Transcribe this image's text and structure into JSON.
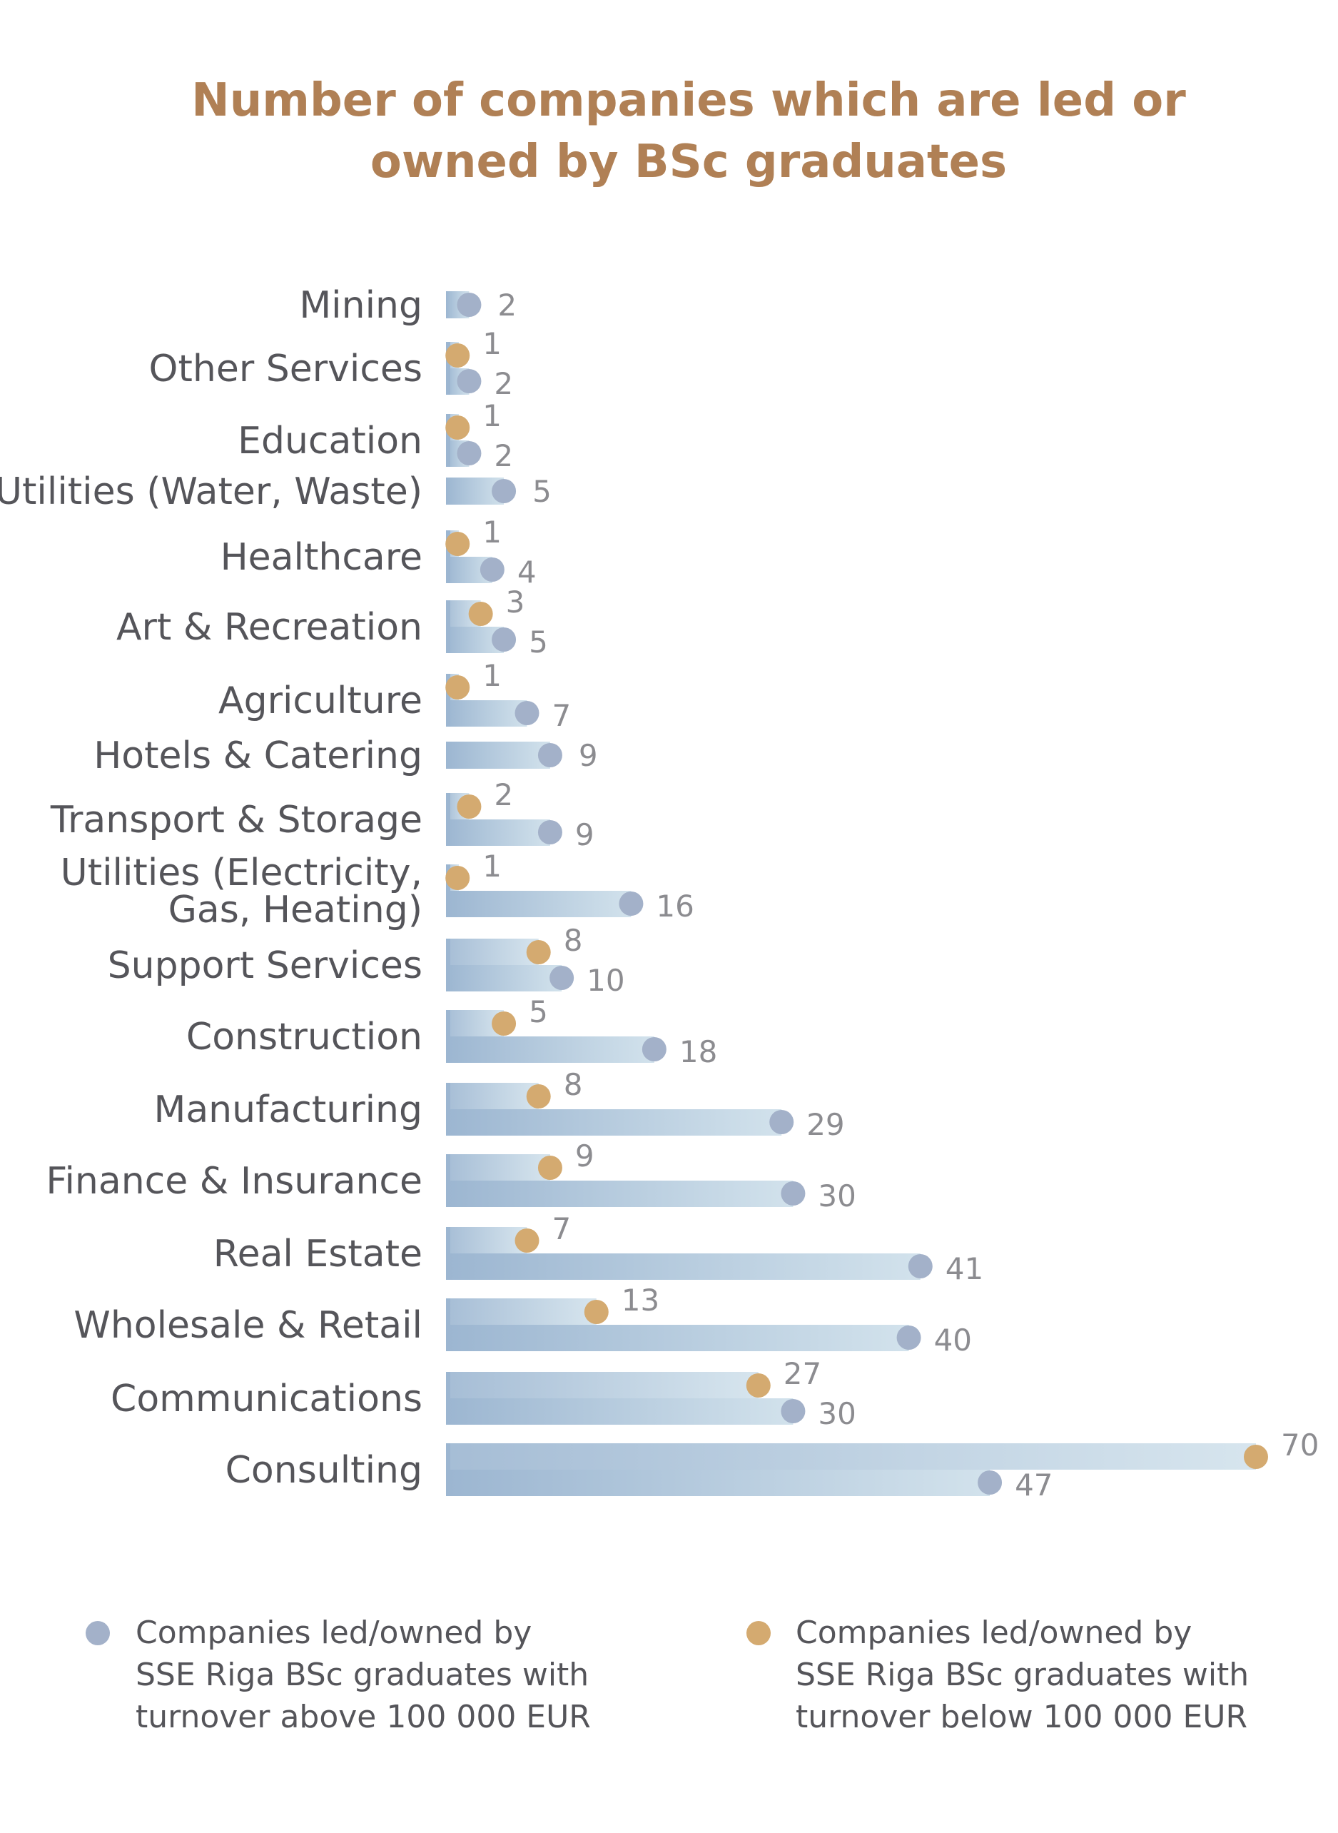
{
  "chart_data": {
    "type": "bar",
    "title": "Number of companies which are led or owned by BSc graduates",
    "title_lines": [
      "Number of companies which are led or",
      "owned by BSc graduates"
    ],
    "categories": [
      [
        "Mining"
      ],
      [
        "Other Services"
      ],
      [
        "Education"
      ],
      [
        "Utilities (Water, Waste)"
      ],
      [
        "Healthcare"
      ],
      [
        "Art & Recreation"
      ],
      [
        "Agriculture"
      ],
      [
        "Hotels & Catering"
      ],
      [
        "Transport & Storage"
      ],
      [
        "Utilities (Electricity,",
        "Gas, Heating)"
      ],
      [
        "Support Services"
      ],
      [
        "Construction"
      ],
      [
        "Manufacturing"
      ],
      [
        "Finance & Insurance"
      ],
      [
        "Real Estate"
      ],
      [
        "Wholesale & Retail"
      ],
      [
        "Communications"
      ],
      [
        "Consulting"
      ]
    ],
    "series": [
      {
        "name": "Companies led/owned by SSE Riga BSc graduates with turnover above 100 000 EUR",
        "legend_lines": [
          "Companies led/owned by",
          "SSE Riga BSc graduates with",
          "turnover above 100 000 EUR"
        ],
        "color": "#a3b1c9",
        "values": [
          2,
          2,
          2,
          5,
          4,
          5,
          7,
          9,
          9,
          16,
          10,
          18,
          29,
          30,
          41,
          40,
          30,
          47
        ],
        "labels": [
          "2",
          "2",
          "2",
          "5",
          "4",
          "5",
          "7",
          "9",
          "9",
          "16",
          "10",
          "18",
          "29",
          "30",
          "41",
          "40",
          "30",
          "47"
        ]
      },
      {
        "name": "Companies led/owned by SSE Riga BSc graduates with turnover below 100 000 EUR",
        "legend_lines": [
          "Companies led/owned by",
          "SSE Riga BSc graduates with",
          "turnover below 100 000 EUR"
        ],
        "color": "#d4aa70",
        "values": [
          null,
          1,
          1,
          null,
          1,
          3,
          1,
          null,
          2,
          1,
          8,
          5,
          8,
          9,
          7,
          13,
          27,
          70
        ],
        "labels": [
          "",
          "1",
          "1",
          "",
          "1",
          "3",
          "1",
          "",
          "2",
          "1",
          "8",
          "5",
          "8",
          "9",
          "7",
          "13",
          "27",
          "70"
        ]
      }
    ],
    "colors": {
      "title": "#b08055",
      "category_text": "#55555a",
      "value_text": "#8c8c90",
      "bar_start": "#9cb6d1",
      "bar_end": "#d2e2ec"
    },
    "xlim": [
      0,
      70
    ],
    "grid": false,
    "legend_position": "bottom"
  }
}
